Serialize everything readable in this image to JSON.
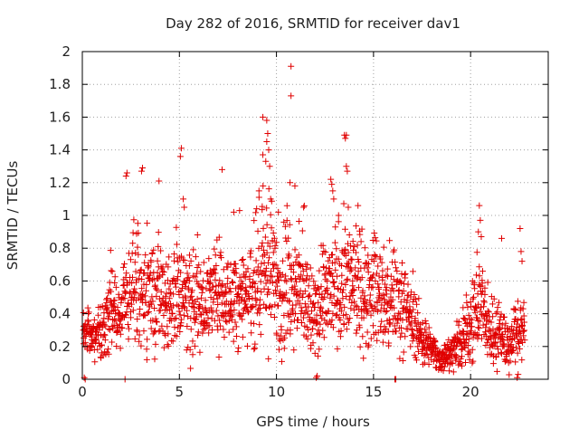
{
  "chart_data": {
    "type": "scatter",
    "title": "Day 282 of 2016, SRMTID for receiver dav1",
    "xlabel": "GPS time / hours",
    "ylabel": "SRMTID / TECUs",
    "xlim": [
      0,
      24
    ],
    "ylim": [
      0,
      2
    ],
    "grid": true,
    "marker": "plus",
    "x_ticks": [
      0,
      5,
      10,
      15,
      20
    ],
    "x_tick_labels": [
      "0",
      "5",
      "10",
      "15",
      "20"
    ],
    "y_ticks": [
      0,
      0.2,
      0.4,
      0.6,
      0.8,
      1,
      1.2,
      1.4,
      1.6,
      1.8,
      2
    ],
    "y_tick_labels": [
      "0",
      "0.2",
      "0.4",
      "0.6",
      "0.8",
      "1",
      "1.2",
      "1.4",
      "1.6",
      "1.8",
      "2"
    ],
    "series": [
      {
        "name": "SRMTID",
        "color": "#e00000",
        "trend": [
          [
            0.0,
            0.3,
            0.12
          ],
          [
            0.5,
            0.22,
            0.1
          ],
          [
            1.0,
            0.3,
            0.15
          ],
          [
            1.5,
            0.45,
            0.2
          ],
          [
            2.0,
            0.38,
            0.15
          ],
          [
            2.5,
            0.6,
            0.25
          ],
          [
            3.0,
            0.5,
            0.25
          ],
          [
            3.5,
            0.55,
            0.25
          ],
          [
            4.0,
            0.52,
            0.25
          ],
          [
            4.5,
            0.48,
            0.25
          ],
          [
            5.0,
            0.55,
            0.25
          ],
          [
            5.5,
            0.5,
            0.25
          ],
          [
            6.0,
            0.45,
            0.2
          ],
          [
            6.5,
            0.5,
            0.2
          ],
          [
            7.0,
            0.55,
            0.25
          ],
          [
            7.5,
            0.5,
            0.2
          ],
          [
            8.0,
            0.55,
            0.25
          ],
          [
            8.5,
            0.5,
            0.2
          ],
          [
            9.0,
            0.6,
            0.3
          ],
          [
            9.5,
            0.65,
            0.35
          ],
          [
            10.0,
            0.55,
            0.3
          ],
          [
            10.5,
            0.6,
            0.3
          ],
          [
            11.0,
            0.58,
            0.25
          ],
          [
            11.5,
            0.5,
            0.25
          ],
          [
            12.0,
            0.35,
            0.25
          ],
          [
            12.5,
            0.5,
            0.25
          ],
          [
            13.0,
            0.55,
            0.25
          ],
          [
            13.5,
            0.6,
            0.3
          ],
          [
            14.0,
            0.55,
            0.25
          ],
          [
            14.5,
            0.5,
            0.25
          ],
          [
            15.0,
            0.55,
            0.25
          ],
          [
            15.5,
            0.45,
            0.2
          ],
          [
            16.0,
            0.5,
            0.25
          ],
          [
            16.5,
            0.45,
            0.2
          ],
          [
            17.0,
            0.35,
            0.15
          ],
          [
            17.5,
            0.25,
            0.12
          ],
          [
            18.0,
            0.18,
            0.08
          ],
          [
            18.5,
            0.12,
            0.06
          ],
          [
            19.0,
            0.16,
            0.08
          ],
          [
            19.5,
            0.2,
            0.1
          ],
          [
            20.0,
            0.35,
            0.2
          ],
          [
            20.5,
            0.45,
            0.25
          ],
          [
            21.0,
            0.3,
            0.15
          ],
          [
            21.5,
            0.3,
            0.15
          ],
          [
            22.0,
            0.2,
            0.12
          ],
          [
            22.5,
            0.32,
            0.15
          ],
          [
            22.8,
            0.3,
            0.1
          ]
        ],
        "outliers": [
          [
            10.75,
            1.91
          ],
          [
            10.75,
            1.73
          ],
          [
            9.3,
            1.6
          ],
          [
            9.5,
            1.58
          ],
          [
            9.55,
            1.5
          ],
          [
            9.5,
            1.45
          ],
          [
            9.6,
            1.4
          ],
          [
            9.3,
            1.37
          ],
          [
            9.45,
            1.33
          ],
          [
            9.65,
            1.3
          ],
          [
            13.5,
            1.49
          ],
          [
            13.6,
            1.49
          ],
          [
            13.55,
            1.47
          ],
          [
            13.6,
            1.3
          ],
          [
            13.65,
            1.27
          ],
          [
            5.1,
            1.41
          ],
          [
            5.05,
            1.36
          ],
          [
            3.1,
            1.29
          ],
          [
            3.05,
            1.27
          ],
          [
            2.3,
            1.26
          ],
          [
            2.25,
            1.24
          ],
          [
            7.2,
            1.28
          ],
          [
            3.95,
            1.21
          ],
          [
            10.7,
            1.2
          ],
          [
            10.95,
            1.18
          ],
          [
            12.8,
            1.22
          ],
          [
            12.85,
            1.19
          ],
          [
            12.9,
            1.15
          ],
          [
            12.95,
            1.1
          ],
          [
            13.7,
            1.05
          ],
          [
            9.1,
            1.15
          ],
          [
            9.7,
            1.1
          ],
          [
            5.2,
            1.1
          ],
          [
            5.25,
            1.05
          ],
          [
            20.45,
            1.06
          ],
          [
            20.5,
            0.97
          ],
          [
            20.4,
            0.9
          ],
          [
            20.55,
            0.87
          ],
          [
            21.6,
            0.86
          ],
          [
            22.55,
            0.92
          ],
          [
            22.6,
            0.78
          ],
          [
            22.65,
            0.72
          ],
          [
            7.8,
            1.02
          ],
          [
            8.1,
            1.03
          ],
          [
            10.1,
            1.02
          ],
          [
            11.4,
            1.05
          ],
          [
            13.2,
            1.0
          ],
          [
            14.2,
            1.06
          ],
          [
            0.05,
            0.3
          ],
          [
            0.1,
            0.01
          ],
          [
            0.15,
            0.0
          ],
          [
            2.2,
            0.0
          ],
          [
            16.1,
            0.0
          ],
          [
            16.15,
            0.0
          ],
          [
            12.05,
            0.01
          ],
          [
            12.1,
            0.02
          ],
          [
            22.4,
            0.01
          ],
          [
            22.45,
            0.03
          ]
        ]
      }
    ]
  }
}
